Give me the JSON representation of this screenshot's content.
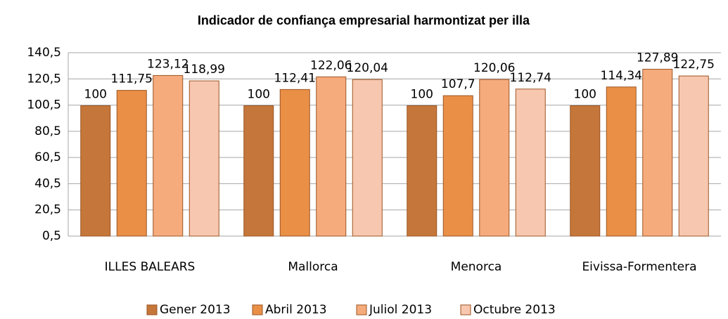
{
  "chart_data": {
    "type": "bar",
    "title": "Indicador de confiança empresarial harmontizat per illa",
    "categories": [
      "ILLES BALEARS",
      "Mallorca",
      "Menorca",
      "Eivissa-Formentera"
    ],
    "series": [
      {
        "name": "Gener 2013",
        "color": "#c5763a",
        "values": [
          100,
          100,
          100,
          100
        ],
        "value_labels": [
          "100",
          "100",
          "100",
          "100"
        ]
      },
      {
        "name": "Abril 2013",
        "color": "#e98f46",
        "values": [
          111.75,
          112.41,
          107.7,
          114.34
        ],
        "value_labels": [
          "111,75",
          "112,41",
          "107,7",
          "114,34"
        ]
      },
      {
        "name": "Juliol 2013",
        "color": "#f5ab7b",
        "values": [
          123.12,
          122.06,
          120.06,
          127.89
        ],
        "value_labels": [
          "123,12",
          "122,06",
          "120,06",
          "127,89"
        ]
      },
      {
        "name": "Octubre 2013",
        "color": "#f8c7af",
        "values": [
          118.99,
          120.04,
          112.74,
          122.75
        ],
        "value_labels": [
          "118,99",
          "120,04",
          "112,74",
          "122,75"
        ]
      }
    ],
    "ylim": [
      0.5,
      140.5
    ],
    "yticks": [
      {
        "value": 0.5,
        "label": "0,5"
      },
      {
        "value": 20.5,
        "label": "20,5"
      },
      {
        "value": 40.5,
        "label": "40,5"
      },
      {
        "value": 60.5,
        "label": "60,5"
      },
      {
        "value": 80.5,
        "label": "80,5"
      },
      {
        "value": 100.5,
        "label": "100,5"
      },
      {
        "value": 120.5,
        "label": "120,5"
      },
      {
        "value": 140.5,
        "label": "140,5"
      }
    ],
    "grid": true,
    "legend": "bottom"
  }
}
